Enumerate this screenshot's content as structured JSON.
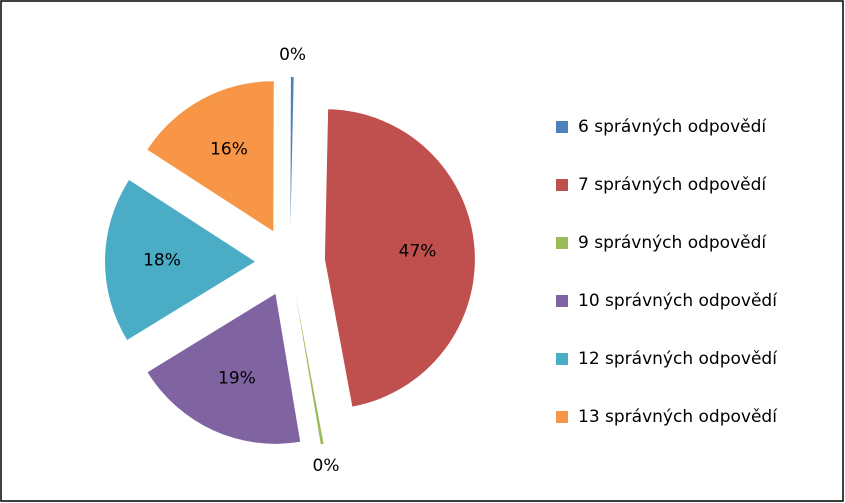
{
  "chart_data": {
    "type": "pie",
    "categories": [
      "6 správných odpovědí",
      "7 správných odpovědí",
      "9 správných odpovědí",
      "10 správných odpovědí",
      "12 správných odpovědí",
      "13 správných odpovědí"
    ],
    "values": [
      0.3,
      47,
      0.3,
      19,
      18,
      16
    ],
    "value_labels": [
      "0%",
      "47%",
      "0%",
      "19%",
      "18%",
      "16%"
    ],
    "colors": [
      "#4f81bd",
      "#c0504d",
      "#9bbb59",
      "#8064a2",
      "#4bacc6",
      "#f79646"
    ],
    "legend": "right"
  }
}
